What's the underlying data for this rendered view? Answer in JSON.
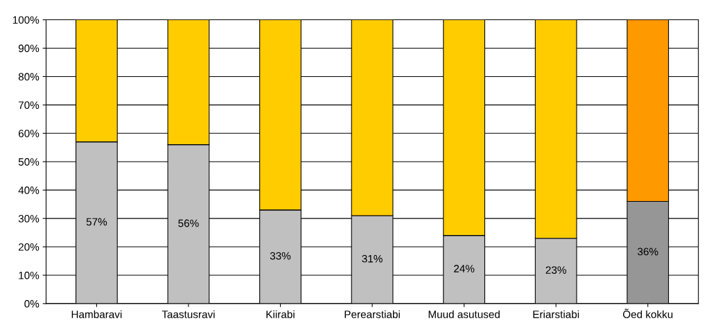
{
  "chart_data": {
    "type": "bar",
    "stacked": true,
    "categories": [
      "Hambaravi",
      "Taastusravi",
      "Kiirabi",
      "Perearstiabi",
      "Muud asutused",
      "Eriarstiabi",
      "Õed kokku"
    ],
    "series": [
      {
        "colors": [
          "#c0c0c0",
          "#c0c0c0",
          "#c0c0c0",
          "#c0c0c0",
          "#c0c0c0",
          "#c0c0c0",
          "#969696"
        ],
        "values": [
          57,
          56,
          33,
          31,
          24,
          23,
          36
        ],
        "value_labels": [
          "57%",
          "56%",
          "33%",
          "31%",
          "24%",
          "23%",
          "36%"
        ]
      },
      {
        "colors": [
          "#ffcc00",
          "#ffcc00",
          "#ffcc00",
          "#ffcc00",
          "#ffcc00",
          "#ffcc00",
          "#ff9900"
        ],
        "values": [
          43,
          44,
          67,
          69,
          76,
          77,
          64
        ]
      }
    ],
    "ylim": [
      0,
      100
    ],
    "yticks": [
      {
        "value": 0,
        "label": "0%"
      },
      {
        "value": 10,
        "label": "10%"
      },
      {
        "value": 20,
        "label": "20%"
      },
      {
        "value": 30,
        "label": "30%"
      },
      {
        "value": 40,
        "label": "40%"
      },
      {
        "value": 50,
        "label": "50%"
      },
      {
        "value": 60,
        "label": "60%"
      },
      {
        "value": 70,
        "label": "70%"
      },
      {
        "value": 80,
        "label": "80%"
      },
      {
        "value": 90,
        "label": "90%"
      },
      {
        "value": 100,
        "label": "100%"
      }
    ],
    "grid": "y"
  }
}
